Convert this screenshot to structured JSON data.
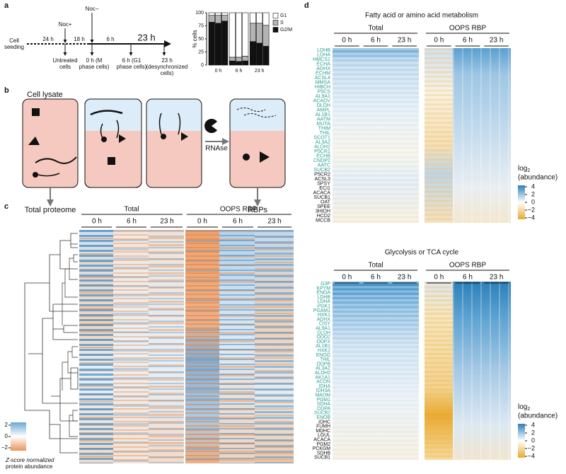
{
  "panel_a": {
    "label": "a",
    "timeline": {
      "seeding": [
        "Cell",
        "seeding"
      ],
      "step1": "24 h",
      "noc_plus": "Noc+",
      "step2": "18 h",
      "noc_minus": "Noc−",
      "step3": "6 h",
      "step4": "23 h",
      "points": [
        [
          "Untreated",
          "cells"
        ],
        [
          "0 h (M",
          "phase cells)"
        ],
        [
          "6 h (G1",
          "phase cells)"
        ],
        [
          "23 h",
          "(desynchronized",
          "cells)"
        ]
      ]
    }
  },
  "chart_data": {
    "type": "bar",
    "stacked": true,
    "ylabel": "% cells",
    "ylim": [
      0,
      100
    ],
    "yticks": [
      0,
      25,
      50,
      75,
      100
    ],
    "categories": [
      null,
      "0 h",
      null,
      null,
      "6 h",
      null,
      null,
      "23 h",
      null
    ],
    "series": [
      {
        "name": "G1",
        "color": "#ffffff",
        "values": [
          5,
          5,
          5,
          85,
          85,
          83,
          20,
          20,
          24
        ]
      },
      {
        "name": "S",
        "color": "#b3b3b3",
        "values": [
          13,
          15,
          11,
          7,
          8,
          9,
          35,
          38,
          40
        ]
      },
      {
        "name": "G2/M",
        "color": "#111111",
        "values": [
          82,
          80,
          84,
          8,
          7,
          8,
          45,
          42,
          36
        ]
      }
    ]
  },
  "panel_b": {
    "label": "b",
    "lysate": "Cell lysate",
    "total": "Total proteome",
    "rnase": "RNAse",
    "rbps": "RBPs"
  },
  "panel_c": {
    "label": "c",
    "groups": [
      "Total",
      "OOPS RBP"
    ],
    "times": [
      "0 h",
      "6 h",
      "23 h"
    ],
    "colorbar": {
      "ticks": [
        2,
        0,
        {
          "value": -2,
          "label": "−2"
        }
      ],
      "label": [
        "Z-score normalized",
        "protein abundance"
      ]
    }
  },
  "panel_d": {
    "label": "d",
    "highlight_color": "#2a9d8f",
    "heatmaps": [
      {
        "title": "Fatty acid or amino acid metabolism",
        "groups": [
          "Total",
          "OOPS RBP"
        ],
        "times": [
          "0 h",
          "6 h",
          "23 h"
        ],
        "rows_highlighted": [
          "LDHB",
          "LDHA",
          "HMCS1",
          "ECHA",
          "ADHX",
          "ECHM",
          "ACSL4",
          "MMSA",
          "HIBCH",
          "P5CS",
          "AL9A1",
          "ACADV",
          "DLDH",
          "AMPL",
          "AL1B1",
          "AATM",
          "MUTA",
          "THIM",
          "THIL",
          "SCOT1",
          "AL3A2",
          "ALDH2",
          "P5CR1",
          "ECHB",
          "CNDP2",
          "AATC",
          "SUCB2"
        ],
        "rows_other": [
          "P5CR2",
          "ACSL3",
          "SPSY",
          "ECI1",
          "ACACA",
          "SUCB1",
          "OAT",
          "SPEE",
          "3HIDH",
          "HCD2",
          "MCCB"
        ],
        "legend": {
          "title": "log",
          "sub": "2",
          "suffix": "(abundance)",
          "ticks": [
            4,
            2,
            0,
            {
              "value": -2,
              "label": "−2"
            },
            {
              "value": -4,
              "label": "−4"
            }
          ]
        }
      },
      {
        "title": "Glycolysis or TCA cycle",
        "groups": [
          "Total",
          "OOPS RBP"
        ],
        "times": [
          "0 h",
          "6 h",
          "23 h"
        ],
        "rows_highlighted": [
          "G3P",
          "KPYM",
          "ENOA",
          "LDHB",
          "LDHA",
          "PGK1",
          "PGAM1",
          "HXK1",
          "ADHX",
          "CISY",
          "AL9A1",
          "DLDH",
          "ODO2",
          "ODPX",
          "AL1B1",
          "HXK2",
          "ENOG",
          "THIL",
          "ODPB",
          "AL3A2",
          "ALDH2",
          "AK1A1",
          "ACON",
          "IDHA",
          "IDH3A",
          "MAOM",
          "PGM1",
          "SDHA",
          "ODPA",
          "SUCB2",
          "ENOB"
        ],
        "rows_other": [
          "IDHC",
          "FUMH",
          "MDHC",
          "LGUL",
          "ACACA",
          "PGM2",
          "PCKGM",
          "SDHB",
          "SUCB1"
        ],
        "legend": {
          "title": "log",
          "sub": "2",
          "suffix": "(abundance)",
          "ticks": [
            4,
            2,
            0,
            {
              "value": -2,
              "label": "−2"
            },
            {
              "value": -4,
              "label": "−4"
            }
          ]
        }
      }
    ]
  }
}
